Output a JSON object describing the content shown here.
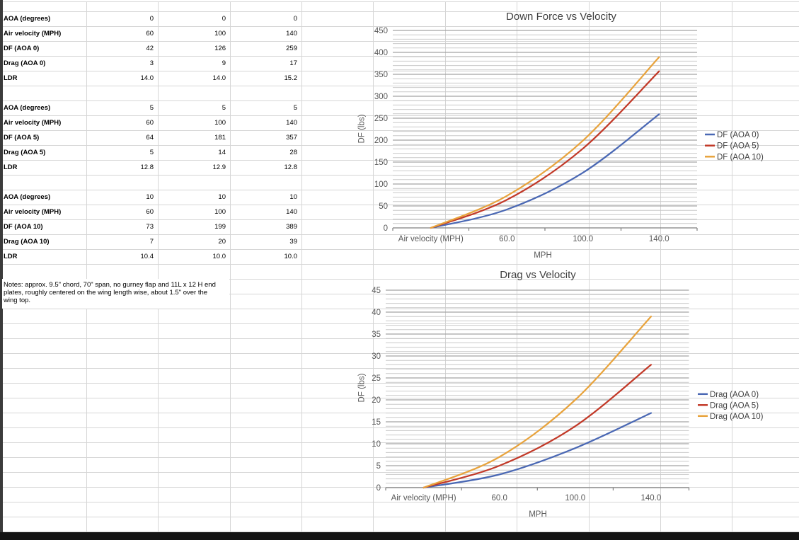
{
  "app": {
    "kind": "spreadsheet"
  },
  "table": {
    "blocks": [
      {
        "rows": [
          [
            "AOA (degrees)",
            "0",
            "0",
            "0"
          ],
          [
            "Air velocity (MPH)",
            "60",
            "100",
            "140"
          ],
          [
            "DF (AOA 0)",
            "42",
            "126",
            "259"
          ],
          [
            "Drag (AOA 0)",
            "3",
            "9",
            "17"
          ],
          [
            "LDR",
            "14.0",
            "14.0",
            "15.2"
          ]
        ]
      },
      {
        "rows": [
          [
            "AOA (degrees)",
            "5",
            "5",
            "5"
          ],
          [
            "Air velocity (MPH)",
            "60",
            "100",
            "140"
          ],
          [
            "DF (AOA 5)",
            "64",
            "181",
            "357"
          ],
          [
            "Drag (AOA 5)",
            "5",
            "14",
            "28"
          ],
          [
            "LDR",
            "12.8",
            "12.9",
            "12.8"
          ]
        ]
      },
      {
        "rows": [
          [
            "AOA (degrees)",
            "10",
            "10",
            "10"
          ],
          [
            "Air velocity (MPH)",
            "60",
            "100",
            "140"
          ],
          [
            "DF (AOA 10)",
            "73",
            "199",
            "389"
          ],
          [
            "Drag (AOA 10)",
            "7",
            "20",
            "39"
          ],
          [
            "LDR",
            "10.4",
            "10.0",
            "10.0"
          ]
        ]
      }
    ],
    "notes": "Notes: approx. 9.5\" chord, 70\" span, no gurney flap and 11L x 12 H end plates, roughly centered on the wing length wise, about 1.5\" over the wing top."
  },
  "chart_data": [
    {
      "type": "line",
      "title": "Down Force vs Velocity",
      "categories": [
        "Air velocity (MPH)",
        "60.0",
        "100.0",
        "140.0"
      ],
      "series": [
        {
          "name": "DF (AOA 0)",
          "color": "#4A68B4",
          "values": [
            0,
            42,
            126,
            259
          ]
        },
        {
          "name": "DF (AOA 5)",
          "color": "#C23928",
          "values": [
            0,
            64,
            181,
            357
          ]
        },
        {
          "name": "DF (AOA 10)",
          "color": "#E8A33C",
          "values": [
            0,
            73,
            199,
            389
          ]
        }
      ],
      "xlabel": "MPH",
      "ylabel": "DF (lbs)",
      "ylim": [
        0,
        450
      ],
      "ytick_major": 50,
      "ytick_minor": 10,
      "grid": "horizontal-minor",
      "legend_position": "right",
      "smoothed_lines": true
    },
    {
      "type": "line",
      "title": "Drag vs Velocity",
      "categories": [
        "Air velocity (MPH)",
        "60.0",
        "100.0",
        "140.0"
      ],
      "series": [
        {
          "name": "Drag (AOA 0)",
          "color": "#4A68B4",
          "values": [
            0,
            3,
            9,
            17
          ]
        },
        {
          "name": "Drag (AOA 5)",
          "color": "#C23928",
          "values": [
            0,
            5,
            14,
            28
          ]
        },
        {
          "name": "Drag (AOA 10)",
          "color": "#E8A33C",
          "values": [
            0,
            7,
            20,
            39
          ]
        }
      ],
      "xlabel": "MPH",
      "ylabel": "DF (lbs)",
      "ylim": [
        0,
        45
      ],
      "ytick_major": 5,
      "ytick_minor": 1,
      "grid": "horizontal-minor",
      "legend_position": "right",
      "smoothed_lines": true
    }
  ],
  "colors": {
    "sheet_gridline": "#d6d6d6",
    "chart_minor_grid": "#c9c9c9",
    "chart_major_grid": "#a3a3a3",
    "axis_line": "#7f7f7f",
    "axis_text": "#595959",
    "title_text": "#404040"
  }
}
